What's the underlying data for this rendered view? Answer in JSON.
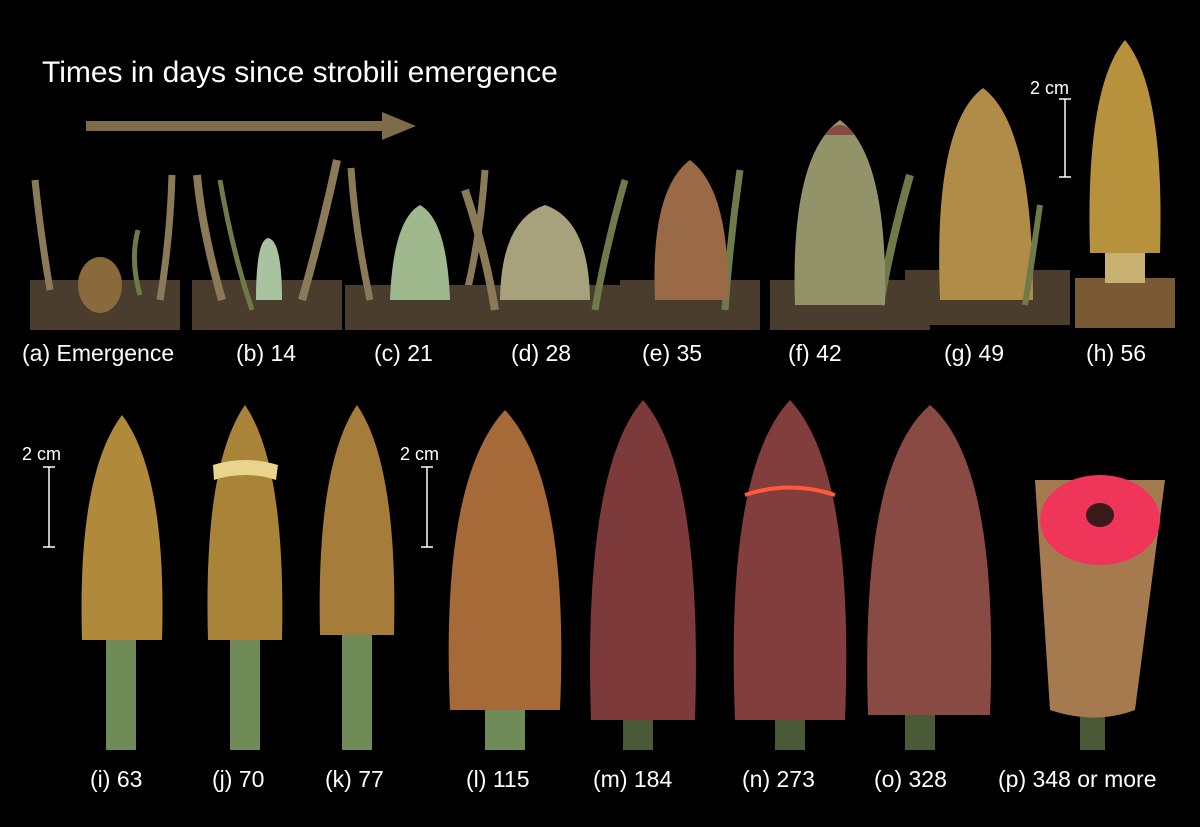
{
  "title": "Times in days since strobili emergence",
  "scale_label": "2 cm",
  "colors": {
    "background": "#000000",
    "arrow": "#7d6b4a",
    "cone_green": "#9fb88e",
    "cone_brown": "#8a6a3c",
    "cone_gold": "#b38c3e",
    "cone_maroon": "#7c3b3a",
    "seed_red": "#f0355b",
    "stalk": "#6f8b58",
    "soil": "#4b3d2d"
  },
  "row1": [
    {
      "label": "(a) Emergence",
      "stage": "emergence"
    },
    {
      "label": "(b) 14",
      "stage": "young-green"
    },
    {
      "label": "(c) 21",
      "stage": "young-green"
    },
    {
      "label": "(d) 28",
      "stage": "green-brown"
    },
    {
      "label": "(e) 35",
      "stage": "brown"
    },
    {
      "label": "(f) 42",
      "stage": "brown-green"
    },
    {
      "label": "(g) 49",
      "stage": "golden"
    },
    {
      "label": "(h) 56",
      "stage": "golden"
    }
  ],
  "row2": [
    {
      "label": "(i) 63",
      "stage": "stalked-golden"
    },
    {
      "label": "(j) 70",
      "stage": "stalked-golden"
    },
    {
      "label": "(k) 77",
      "stage": "stalked-golden"
    },
    {
      "label": "(l) 115",
      "stage": "mature-brown"
    },
    {
      "label": "(m) 184",
      "stage": "maroon"
    },
    {
      "label": "(n) 273",
      "stage": "maroon-opening"
    },
    {
      "label": "(o) 328",
      "stage": "maroon-opening"
    },
    {
      "label": "(p) 348 or more",
      "stage": "open-seeds"
    }
  ]
}
